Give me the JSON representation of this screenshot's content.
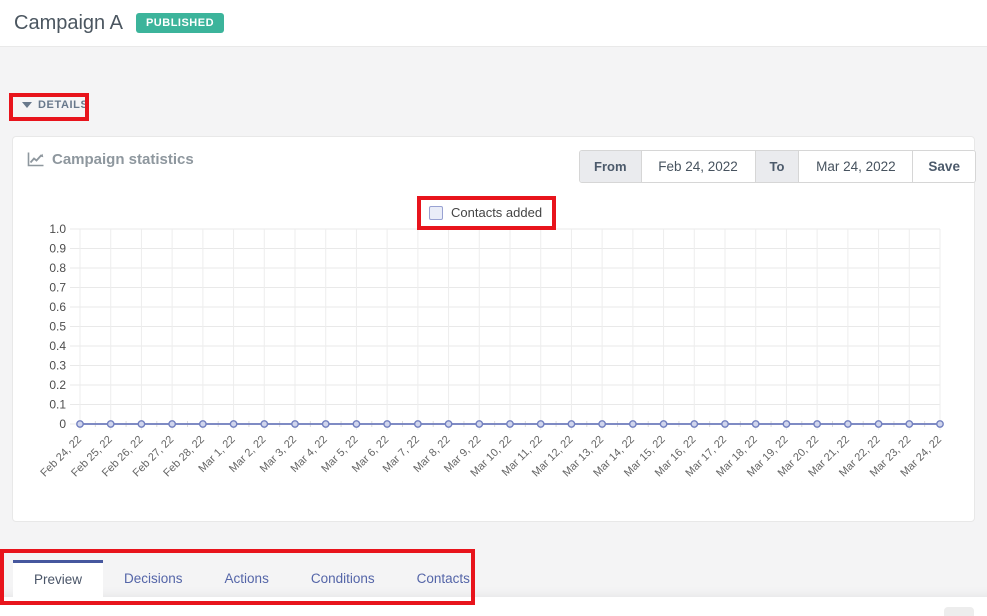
{
  "header": {
    "title": "Campaign A",
    "badge": "PUBLISHED"
  },
  "details_toggle": {
    "label": "DETAILS"
  },
  "stats_panel": {
    "title": "Campaign statistics",
    "date_range": {
      "from_label": "From",
      "from_value": "Feb 24, 2022",
      "to_label": "To",
      "to_value": "Mar 24, 2022",
      "save_label": "Save"
    }
  },
  "chart_data": {
    "type": "line",
    "title": "Campaign statistics",
    "legend_position": "top",
    "legend": [
      {
        "label": "Contacts added",
        "checked": false
      }
    ],
    "categories": [
      "Feb 24, 22",
      "Feb 25, 22",
      "Feb 26, 22",
      "Feb 27, 22",
      "Feb 28, 22",
      "Mar 1, 22",
      "Mar 2, 22",
      "Mar 3, 22",
      "Mar 4, 22",
      "Mar 5, 22",
      "Mar 6, 22",
      "Mar 7, 22",
      "Mar 8, 22",
      "Mar 9, 22",
      "Mar 10, 22",
      "Mar 11, 22",
      "Mar 12, 22",
      "Mar 13, 22",
      "Mar 14, 22",
      "Mar 15, 22",
      "Mar 16, 22",
      "Mar 17, 22",
      "Mar 18, 22",
      "Mar 19, 22",
      "Mar 20, 22",
      "Mar 21, 22",
      "Mar 22, 22",
      "Mar 23, 22",
      "Mar 24, 22"
    ],
    "series": [
      {
        "name": "Contacts added",
        "values": [
          0,
          0,
          0,
          0,
          0,
          0,
          0,
          0,
          0,
          0,
          0,
          0,
          0,
          0,
          0,
          0,
          0,
          0,
          0,
          0,
          0,
          0,
          0,
          0,
          0,
          0,
          0,
          0,
          0
        ]
      }
    ],
    "ylim": [
      0,
      1.0
    ],
    "yticks": [
      0,
      0.1,
      0.2,
      0.3,
      0.4,
      0.5,
      0.6,
      0.7,
      0.8,
      0.9,
      1.0
    ],
    "grid": true,
    "colors": {
      "line": "#7280bf",
      "point_fill": "#d0d5ed",
      "grid": "#e9e9e9",
      "vgrid": "#ededed"
    }
  },
  "tabs": {
    "items": [
      {
        "label": "Preview",
        "active": true
      },
      {
        "label": "Decisions",
        "active": false
      },
      {
        "label": "Actions",
        "active": false
      },
      {
        "label": "Conditions",
        "active": false
      },
      {
        "label": "Contacts",
        "active": false
      }
    ]
  },
  "annotations": {
    "highlight_color": "#e8141c"
  }
}
